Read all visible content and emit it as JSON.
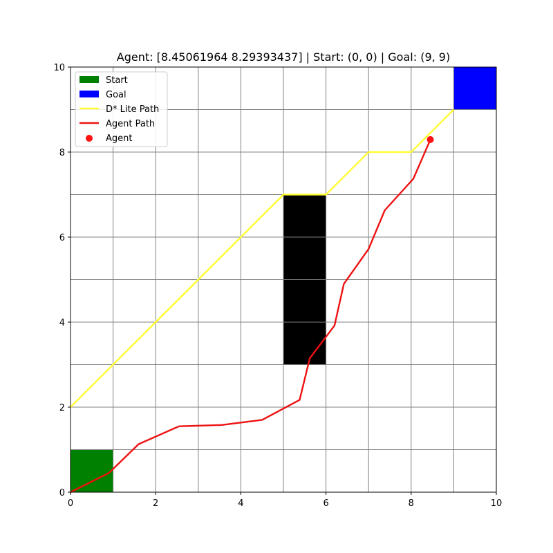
{
  "chart_data": {
    "type": "line",
    "title": "Agent: [8.45061964 8.29393437] | Start: (0, 0) | Goal: (9, 9)",
    "xlabel": "",
    "ylabel": "",
    "xlim": [
      0,
      10
    ],
    "ylim": [
      0,
      10
    ],
    "grid": true,
    "grid_step": 1,
    "xticks": [
      0,
      2,
      4,
      6,
      8,
      10
    ],
    "yticks": [
      0,
      2,
      4,
      6,
      8,
      10
    ],
    "legend_position": "top-left",
    "cells": [
      {
        "name": "Start",
        "x": 0,
        "y": 0,
        "w": 1,
        "h": 1,
        "color": "#008000"
      },
      {
        "name": "Goal",
        "x": 9,
        "y": 9,
        "w": 1,
        "h": 1,
        "color": "#0000ff"
      },
      {
        "name": "",
        "x": 5,
        "y": 3,
        "w": 1,
        "h": 4,
        "color": "#000000"
      }
    ],
    "series": [
      {
        "name": "D* Lite Path",
        "kind": "line",
        "color": "#ffff33",
        "points": [
          [
            0,
            2
          ],
          [
            1,
            3
          ],
          [
            2,
            4
          ],
          [
            3,
            5
          ],
          [
            4,
            6
          ],
          [
            5,
            7
          ],
          [
            6,
            7
          ],
          [
            7,
            8
          ],
          [
            8,
            8
          ],
          [
            9,
            9
          ]
        ]
      },
      {
        "name": "Agent Path",
        "kind": "line",
        "color": "#ee1111",
        "points": [
          [
            0,
            0
          ],
          [
            0.9,
            0.45
          ],
          [
            1.6,
            1.13
          ],
          [
            2.55,
            1.55
          ],
          [
            3.55,
            1.58
          ],
          [
            4.5,
            1.7
          ],
          [
            5.38,
            2.17
          ],
          [
            5.62,
            3.15
          ],
          [
            6.2,
            3.92
          ],
          [
            6.42,
            4.9
          ],
          [
            7.0,
            5.72
          ],
          [
            7.38,
            6.63
          ],
          [
            8.05,
            7.37
          ],
          [
            8.45,
            8.29
          ]
        ]
      },
      {
        "name": "Agent",
        "kind": "point",
        "color": "#ff1111",
        "points": [
          [
            8.45061964,
            8.29393437
          ]
        ]
      }
    ]
  }
}
